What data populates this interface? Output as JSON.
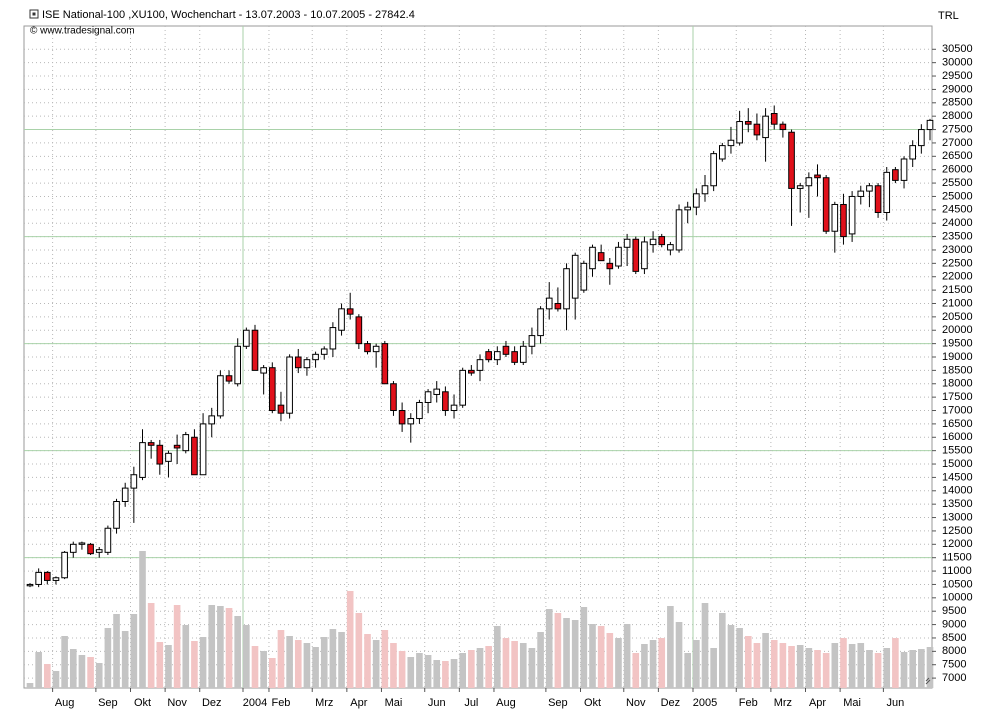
{
  "chart_data": {
    "type": "candlestick",
    "title": "ISE National-100 ,XU100, Wochenchart - 13.07.2003 - 10.07.2005 - 27842.4",
    "subtitle": "© www.tradesignal.com",
    "y_axis_label": "TRL",
    "categories": [
      null,
      null,
      null,
      null,
      "Aug",
      null,
      null,
      null,
      null,
      "Sep",
      null,
      null,
      null,
      "Okt",
      null,
      null,
      null,
      "Nov",
      null,
      null,
      null,
      "Dez",
      null,
      null,
      null,
      null,
      "2004",
      null,
      null,
      "Feb",
      null,
      null,
      null,
      null,
      "Mrz",
      null,
      null,
      null,
      "Apr",
      null,
      null,
      null,
      "Mai",
      null,
      null,
      null,
      null,
      "Jun",
      null,
      null,
      null,
      "Jul",
      null,
      null,
      null,
      "Aug",
      null,
      null,
      null,
      null,
      null,
      "Sep",
      null,
      null,
      null,
      "Okt",
      null,
      null,
      null,
      null,
      "Nov",
      null,
      null,
      null,
      "Dez",
      null,
      null,
      null,
      "2005",
      null,
      null,
      null,
      null,
      "Feb",
      null,
      null,
      null,
      "Mrz",
      null,
      null,
      null,
      "Apr",
      null,
      null,
      null,
      "Mai",
      null,
      null,
      null,
      null,
      "Jun",
      null,
      null,
      null,
      null
    ],
    "open": [
      10450,
      10500,
      10950,
      10650,
      10750,
      11700,
      12000,
      12000,
      11700,
      11700,
      12600,
      13600,
      14100,
      14500,
      15800,
      15700,
      15100,
      15700,
      15500,
      16000,
      14600,
      16500,
      16800,
      18300,
      18000,
      19400,
      20000,
      18400,
      18600,
      17200,
      16900,
      19000,
      18600,
      18900,
      19100,
      19300,
      20000,
      20800,
      20500,
      19500,
      19200,
      19500,
      18000,
      17000,
      16500,
      16700,
      17300,
      17600,
      17700,
      17000,
      17200,
      18500,
      18500,
      19200,
      18900,
      19400,
      19200,
      18800,
      19400,
      19800,
      20800,
      21000,
      20800,
      21200,
      21500,
      22300,
      22900,
      22500,
      22400,
      23100,
      23400,
      22300,
      23200,
      23500,
      23000,
      23000,
      24500,
      24600,
      25100,
      25400,
      26400,
      26900,
      27000,
      27800,
      27700,
      27200,
      28100,
      27700,
      27400,
      25300,
      25400,
      25800,
      25700,
      23700,
      24700,
      23600,
      25000,
      25200,
      25400,
      24400,
      26000,
      25600,
      26400,
      26900,
      27500
    ],
    "high": [
      10550,
      11100,
      11000,
      10800,
      11750,
      12100,
      12100,
      12050,
      11900,
      12700,
      13700,
      14300,
      14900,
      16300,
      15900,
      15900,
      15500,
      16100,
      16200,
      16300,
      16900,
      17100,
      18500,
      18500,
      19700,
      20100,
      20200,
      18700,
      18800,
      17700,
      19100,
      19300,
      19000,
      19200,
      19400,
      20300,
      21000,
      21400,
      20600,
      19600,
      19500,
      19600,
      18100,
      17300,
      16900,
      17400,
      17800,
      18100,
      17900,
      17600,
      18600,
      18700,
      19100,
      19300,
      19400,
      19600,
      19400,
      19600,
      20100,
      20900,
      21800,
      21600,
      22500,
      22900,
      22600,
      23200,
      23200,
      22700,
      23300,
      23600,
      23500,
      23500,
      23700,
      23600,
      23300,
      24700,
      24800,
      25300,
      25800,
      26700,
      27000,
      27600,
      28200,
      28300,
      28100,
      28300,
      28400,
      27800,
      27500,
      25500,
      25900,
      26200,
      25800,
      24800,
      25100,
      25200,
      25400,
      25500,
      25500,
      26100,
      26100,
      26500,
      27100,
      27700,
      27900
    ],
    "low": [
      10400,
      10400,
      10500,
      10500,
      10700,
      11500,
      11800,
      11600,
      11500,
      11600,
      12400,
      13400,
      12800,
      14400,
      15200,
      14600,
      14500,
      15000,
      15400,
      14600,
      14600,
      16000,
      16700,
      18000,
      17900,
      19300,
      18500,
      17600,
      16900,
      16600,
      16700,
      18400,
      18300,
      18600,
      18900,
      19000,
      19800,
      20400,
      19300,
      19100,
      18600,
      18000,
      16800,
      16200,
      15800,
      16500,
      16900,
      17300,
      16800,
      16700,
      17100,
      18300,
      18100,
      18800,
      18700,
      19000,
      18700,
      18700,
      19100,
      19500,
      20400,
      20700,
      20000,
      20400,
      21400,
      22000,
      22600,
      21700,
      22300,
      22400,
      22100,
      22100,
      22900,
      23100,
      22800,
      22900,
      24000,
      24300,
      24800,
      25200,
      26300,
      26600,
      26900,
      27400,
      27100,
      26300,
      27500,
      27200,
      23900,
      24400,
      24200,
      25000,
      23600,
      22900,
      23200,
      23300,
      24700,
      24600,
      24200,
      24100,
      25500,
      25300,
      26100,
      26600,
      27100
    ],
    "close": [
      10500,
      10950,
      10650,
      10750,
      11700,
      12000,
      12050,
      11650,
      11800,
      12600,
      13600,
      14100,
      14600,
      15800,
      15700,
      15000,
      15400,
      15600,
      16100,
      14600,
      16500,
      16800,
      18300,
      18100,
      19400,
      20000,
      18500,
      18600,
      17000,
      16900,
      19000,
      18600,
      18900,
      19100,
      19300,
      20100,
      20800,
      20600,
      19500,
      19200,
      19400,
      18000,
      17000,
      16500,
      16700,
      17300,
      17700,
      17800,
      17000,
      17200,
      18500,
      18400,
      18900,
      18900,
      19200,
      19100,
      18800,
      19400,
      19800,
      20800,
      21200,
      20800,
      22300,
      22800,
      22500,
      23100,
      22600,
      22300,
      23100,
      23400,
      22200,
      23300,
      23400,
      23200,
      23200,
      24500,
      24600,
      25100,
      25400,
      26600,
      26900,
      27100,
      27800,
      27700,
      27300,
      28000,
      27700,
      27500,
      25300,
      25400,
      25700,
      25700,
      23700,
      24700,
      23500,
      25000,
      25200,
      25400,
      24400,
      25900,
      25600,
      26400,
      26900,
      27500,
      27842.4
    ],
    "volume": [
      5,
      36,
      24,
      17,
      52,
      39,
      33,
      31,
      25,
      60,
      74,
      57,
      74,
      137,
      85,
      46,
      43,
      83,
      63,
      47,
      51,
      83,
      82,
      80,
      72,
      63,
      42,
      37,
      30,
      58,
      52,
      48,
      45,
      41,
      51,
      59,
      56,
      97,
      75,
      54,
      48,
      58,
      45,
      37,
      31,
      35,
      33,
      28,
      27,
      29,
      35,
      38,
      40,
      42,
      62,
      50,
      47,
      45,
      40,
      56,
      79,
      75,
      70,
      68,
      81,
      64,
      62,
      55,
      50,
      64,
      35,
      44,
      48,
      50,
      82,
      66,
      35,
      48,
      85,
      40,
      75,
      63,
      60,
      52,
      45,
      55,
      48,
      45,
      42,
      43,
      40,
      38,
      35,
      45,
      50,
      44,
      45,
      38,
      35,
      40,
      50,
      36,
      38,
      39,
      41
    ],
    "volume_ylim": [
      0,
      662
    ],
    "up_color": "#ffffff",
    "down_color": "#e0101a",
    "up_volume_color": "#c4c4c4",
    "down_volume_color": "#f2c4c4",
    "ylim": [
      6630,
      31370
    ],
    "yticks": [
      7000,
      7500,
      8000,
      8500,
      9000,
      9500,
      10000,
      10500,
      11000,
      11500,
      12000,
      12500,
      13000,
      13500,
      14000,
      14500,
      15000,
      15500,
      16000,
      16500,
      17000,
      17500,
      18000,
      18500,
      19000,
      19500,
      20000,
      20500,
      21000,
      21500,
      22000,
      22500,
      23000,
      23500,
      24000,
      24500,
      25000,
      25500,
      26000,
      26500,
      27000,
      27500,
      28000,
      28500,
      29000,
      29500,
      30000,
      30500
    ],
    "major_yticks": [
      11500,
      15500,
      19500,
      23500,
      27500
    ],
    "grid": true
  }
}
